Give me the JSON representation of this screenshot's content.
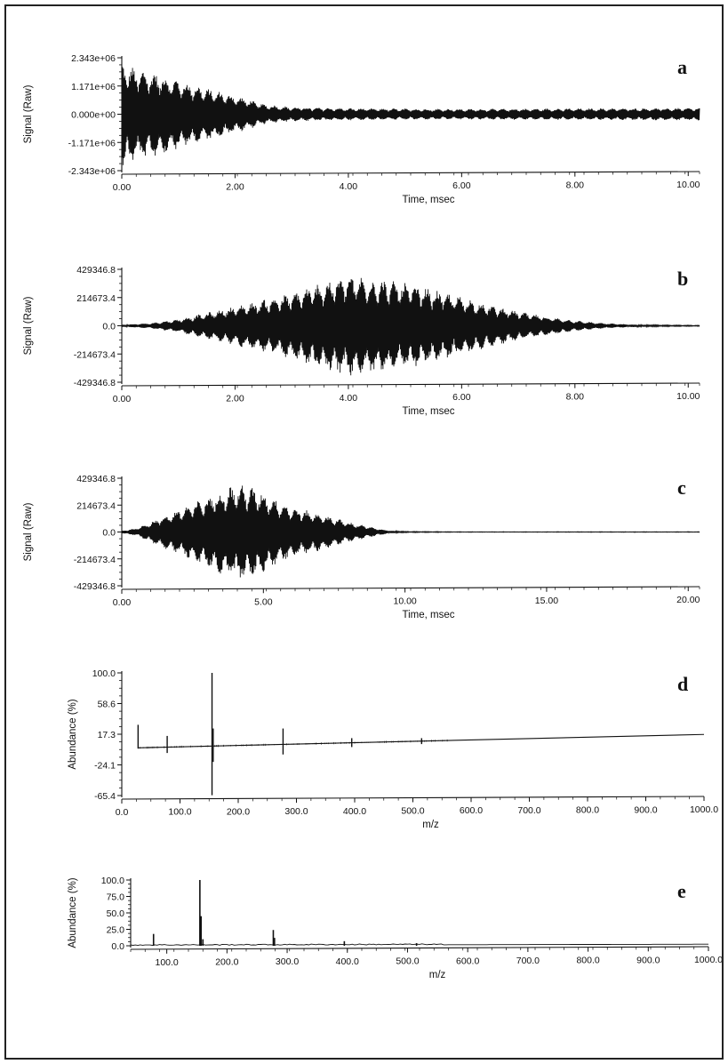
{
  "chart_data": [
    {
      "type": "line",
      "panel_label": "a",
      "xlabel": "Time, msec",
      "ylabel": "Signal (Raw)",
      "xlim": [
        0,
        10.2
      ],
      "ylim": [
        -2343000,
        2343000
      ],
      "x_ticks": [
        "0.00",
        "2.00",
        "4.00",
        "6.00",
        "8.00",
        "10.00"
      ],
      "y_ticks": [
        "2.343e+06",
        "1.171e+06",
        "0.000e+00",
        "-1.171e+06",
        "-2.343e+06"
      ],
      "envelope": {
        "x": [
          0,
          0.2,
          0.6,
          1.0,
          1.4,
          1.8,
          2.2,
          2.5,
          3.0,
          4.0,
          5.0,
          6.0,
          7.0,
          8.0,
          9.0,
          10.2
        ],
        "amplitude": [
          2200000,
          1950000,
          1750000,
          1450000,
          1150000,
          900000,
          650000,
          420000,
          300000,
          250000,
          230000,
          220000,
          230000,
          240000,
          250000,
          260000
        ]
      }
    },
    {
      "type": "line",
      "panel_label": "b",
      "xlabel": "Time, msec",
      "ylabel": "Signal (Raw)",
      "xlim": [
        0,
        10.2
      ],
      "ylim": [
        -429346.8,
        429346.8
      ],
      "x_ticks": [
        "0.00",
        "2.00",
        "4.00",
        "6.00",
        "8.00",
        "10.00"
      ],
      "y_ticks": [
        "429346.8",
        "214673.4",
        "0.0",
        "-214673.4",
        "-429346.8"
      ],
      "envelope": {
        "x": [
          0,
          0.5,
          1.0,
          1.5,
          2.0,
          2.5,
          3.0,
          3.5,
          4.0,
          4.5,
          5.0,
          5.5,
          6.0,
          6.5,
          7.0,
          7.5,
          8.0,
          8.5,
          9.0,
          9.5,
          10.2
        ],
        "amplitude": [
          8000,
          20000,
          50000,
          100000,
          150000,
          200000,
          250000,
          330000,
          390000,
          360000,
          330000,
          280000,
          220000,
          160000,
          110000,
          70000,
          40000,
          20000,
          10000,
          5000,
          3000
        ]
      }
    },
    {
      "type": "line",
      "panel_label": "c",
      "xlabel": "Time, msec",
      "ylabel": "Signal (Raw)",
      "xlim": [
        0,
        20.4
      ],
      "ylim": [
        -429346.8,
        429346.8
      ],
      "x_ticks": [
        "0.00",
        "5.00",
        "10.00",
        "15.00",
        "20.00"
      ],
      "y_ticks": [
        "429346.8",
        "214673.4",
        "0.0",
        "-214673.4",
        "-429346.8"
      ],
      "envelope": {
        "x": [
          0,
          0.5,
          1.0,
          2.0,
          3.0,
          3.5,
          4.0,
          4.5,
          5.0,
          6.0,
          7.0,
          8.0,
          9.0,
          9.5,
          10.0,
          12.0,
          15.0,
          20.4
        ],
        "amplitude": [
          10000,
          30000,
          80000,
          180000,
          280000,
          340000,
          380000,
          370000,
          320000,
          200000,
          150000,
          80000,
          30000,
          10000,
          4000,
          2000,
          2000,
          2000
        ]
      }
    },
    {
      "type": "line",
      "panel_label": "d",
      "xlabel": "m/z",
      "ylabel": "Abundance (%)",
      "xlim": [
        0,
        1000
      ],
      "ylim": [
        -65.4,
        100
      ],
      "x_ticks": [
        "0.0",
        "100.0",
        "200.0",
        "300.0",
        "400.0",
        "500.0",
        "600.0",
        "700.0",
        "800.0",
        "900.0",
        "1000.0"
      ],
      "y_ticks": [
        "100.0",
        "58.6",
        "17.3",
        "-24.1",
        "-65.4"
      ],
      "baseline": {
        "x": [
          28,
          1000
        ],
        "y": [
          -1,
          17
        ]
      },
      "peaks": [
        {
          "mz": 28,
          "top": 30,
          "bottom": -2
        },
        {
          "mz": 78,
          "top": 15,
          "bottom": -8
        },
        {
          "mz": 155,
          "top": 100,
          "bottom": -65
        },
        {
          "mz": 157,
          "top": 25,
          "bottom": -20
        },
        {
          "mz": 277,
          "top": 25,
          "bottom": -10
        },
        {
          "mz": 395,
          "top": 12,
          "bottom": 0
        },
        {
          "mz": 515,
          "top": 12,
          "bottom": 4
        }
      ]
    },
    {
      "type": "bar",
      "panel_label": "e",
      "xlabel": "m/z",
      "ylabel": "Abundance (%)",
      "xlim": [
        40,
        1000
      ],
      "ylim": [
        0,
        100
      ],
      "x_ticks": [
        "100.0",
        "200.0",
        "300.0",
        "400.0",
        "500.0",
        "600.0",
        "700.0",
        "800.0",
        "900.0",
        "1000.0"
      ],
      "y_ticks": [
        "100.0",
        "75.0",
        "50.0",
        "25.0",
        "0.0"
      ],
      "peaks": [
        {
          "mz": 78,
          "abundance": 18
        },
        {
          "mz": 155,
          "abundance": 100
        },
        {
          "mz": 157,
          "abundance": 45
        },
        {
          "mz": 160,
          "abundance": 10
        },
        {
          "mz": 277,
          "abundance": 24
        },
        {
          "mz": 279,
          "abundance": 12
        },
        {
          "mz": 395,
          "abundance": 7
        },
        {
          "mz": 515,
          "abundance": 4
        }
      ]
    }
  ]
}
